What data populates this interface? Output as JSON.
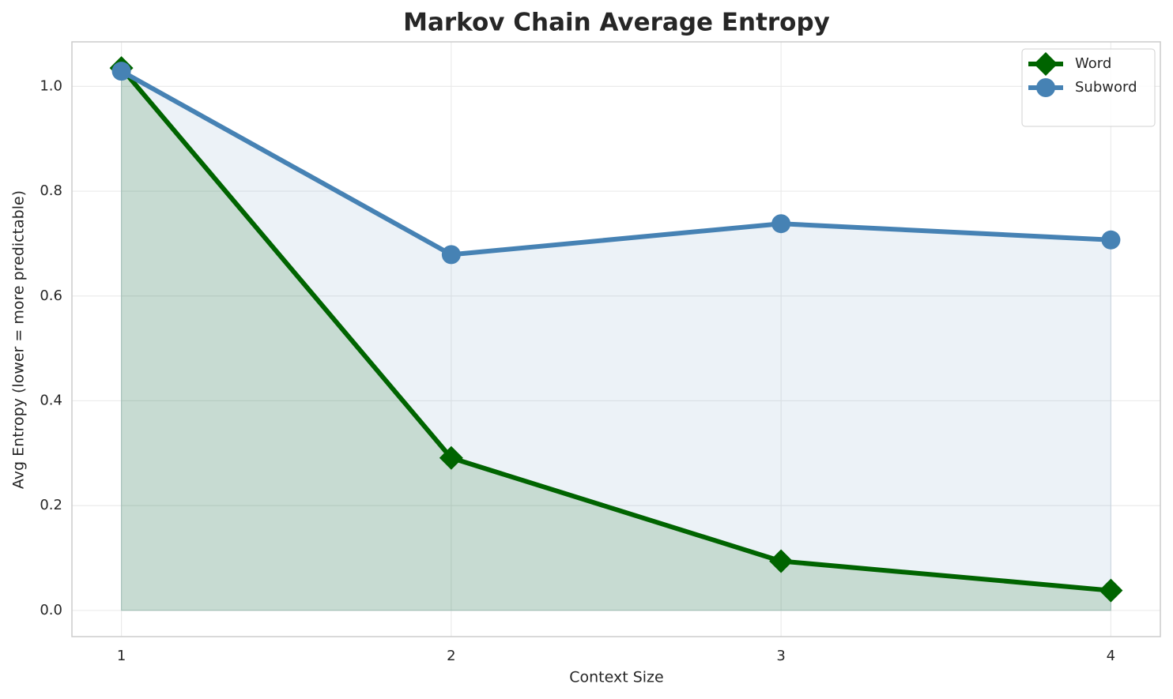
{
  "chart_data": {
    "type": "line",
    "title": "Markov Chain Average Entropy",
    "xlabel": "Context Size",
    "ylabel": "Avg Entropy (lower = more predictable)",
    "x": [
      1,
      2,
      3,
      4
    ],
    "series": [
      {
        "name": "Word",
        "color": "#006400",
        "marker": "diamond",
        "fill": true,
        "values": [
          1.035,
          0.291,
          0.094,
          0.038
        ]
      },
      {
        "name": "Subword",
        "color": "#4682b4",
        "marker": "circle",
        "fill": true,
        "values": [
          1.029,
          0.679,
          0.738,
          0.707
        ]
      }
    ],
    "xlim": [
      0.85,
      4.15
    ],
    "ylim": [
      -0.05,
      1.085
    ],
    "xticks": [
      1,
      2,
      3,
      4
    ],
    "yticks": [
      {
        "value": 0,
        "label": "0.0"
      },
      0.2,
      0.4,
      0.6,
      0.8,
      {
        "value": 1,
        "label": "1.0"
      }
    ],
    "grid": true,
    "legend": "upper right"
  }
}
